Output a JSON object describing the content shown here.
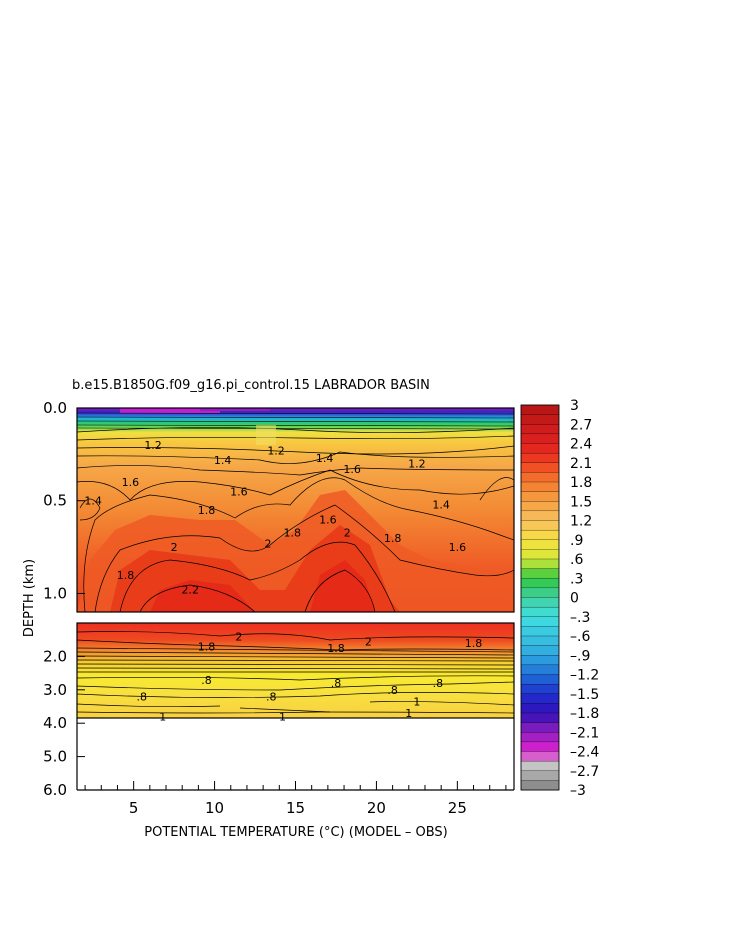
{
  "chart_data": {
    "type": "heatmap",
    "title": "b.e15.B1850G.f09_g16.pi_control.15 LABRADOR BASIN",
    "xlabel": "POTENTIAL TEMPERATURE (°C) (MODEL – OBS)",
    "ylabel": "DEPTH (km)",
    "xlim": [
      1.5,
      28.5
    ],
    "x_ticks": [
      5,
      10,
      15,
      20,
      25
    ],
    "x_tick_labels": [
      "5",
      "10",
      "15",
      "20",
      "25"
    ],
    "upper_panel": {
      "ylim": [
        0.0,
        1.1
      ],
      "y_ticks": [
        0.0,
        0.5,
        1.0
      ],
      "y_tick_labels": [
        "0.0",
        "0.5",
        "1.0"
      ]
    },
    "lower_panel": {
      "ylim": [
        1.0,
        6.0
      ],
      "y_ticks": [
        2.0,
        3.0,
        4.0,
        5.0,
        6.0
      ],
      "y_tick_labels": [
        "2.0",
        "3.0",
        "4.0",
        "5.0",
        "6.0"
      ],
      "data_max_depth": 3.8
    },
    "colorbar": {
      "range": [
        -3,
        3
      ],
      "tick_labels": [
        "3",
        "2.7",
        "2.4",
        "2.1",
        "1.8",
        "1.5",
        "1.2",
        ".9",
        ".6",
        ".3",
        "0",
        "–.3",
        "–.6",
        "–.9",
        "–1.2",
        "–1.5",
        "–1.8",
        "–2.1",
        "–2.4",
        "–2.7",
        "–3"
      ],
      "tick_values": [
        3,
        2.7,
        2.4,
        2.1,
        1.8,
        1.5,
        1.2,
        0.9,
        0.6,
        0.3,
        0,
        -0.3,
        -0.6,
        -0.9,
        -1.2,
        -1.5,
        -1.8,
        -2.1,
        -2.4,
        -2.7,
        -3
      ]
    },
    "contour_labels": [
      {
        "text": "1.2",
        "x": 6.2,
        "y": 0.2
      },
      {
        "text": "1.4",
        "x": 10.5,
        "y": 0.28
      },
      {
        "text": "1.2",
        "x": 13.8,
        "y": 0.23
      },
      {
        "text": "1.4",
        "x": 16.8,
        "y": 0.27
      },
      {
        "text": "1.2",
        "x": 22.5,
        "y": 0.3
      },
      {
        "text": "1.6",
        "x": 18.5,
        "y": 0.33
      },
      {
        "text": "1.4",
        "x": 2.5,
        "y": 0.5
      },
      {
        "text": "1.6",
        "x": 4.8,
        "y": 0.4
      },
      {
        "text": "1.6",
        "x": 11.5,
        "y": 0.45
      },
      {
        "text": "1.8",
        "x": 9.5,
        "y": 0.55
      },
      {
        "text": "1.8",
        "x": 14.8,
        "y": 0.67
      },
      {
        "text": "1.6",
        "x": 17,
        "y": 0.6
      },
      {
        "text": "2",
        "x": 18.2,
        "y": 0.67
      },
      {
        "text": "1.4",
        "x": 24,
        "y": 0.52
      },
      {
        "text": "1.8",
        "x": 21,
        "y": 0.7
      },
      {
        "text": "1.6",
        "x": 25,
        "y": 0.75
      },
      {
        "text": "2",
        "x": 7.5,
        "y": 0.75
      },
      {
        "text": "2",
        "x": 13.3,
        "y": 0.73
      },
      {
        "text": "1.8",
        "x": 4.5,
        "y": 0.9
      },
      {
        "text": "2.2",
        "x": 8.5,
        "y": 0.98
      },
      {
        "text": "2",
        "x": 11.5,
        "y": 1.4
      },
      {
        "text": "1.8",
        "x": 9.5,
        "y": 1.7
      },
      {
        "text": "1.8",
        "x": 17.5,
        "y": 1.75
      },
      {
        "text": "2",
        "x": 19.5,
        "y": 1.55
      },
      {
        "text": "1.8",
        "x": 26,
        "y": 1.6
      },
      {
        "text": ".8",
        "x": 9.5,
        "y": 2.7
      },
      {
        "text": ".8",
        "x": 17.5,
        "y": 2.8
      },
      {
        "text": ".8",
        "x": 23.8,
        "y": 2.8
      },
      {
        "text": ".8",
        "x": 5.5,
        "y": 3.2
      },
      {
        "text": ".8",
        "x": 13.5,
        "y": 3.2
      },
      {
        "text": ".8",
        "x": 21,
        "y": 3.0
      },
      {
        "text": "1",
        "x": 22.5,
        "y": 3.35
      },
      {
        "text": "1",
        "x": 6.8,
        "y": 3.8
      },
      {
        "text": "1",
        "x": 14.2,
        "y": 3.8
      },
      {
        "text": "1",
        "x": 22,
        "y": 3.7
      }
    ]
  }
}
